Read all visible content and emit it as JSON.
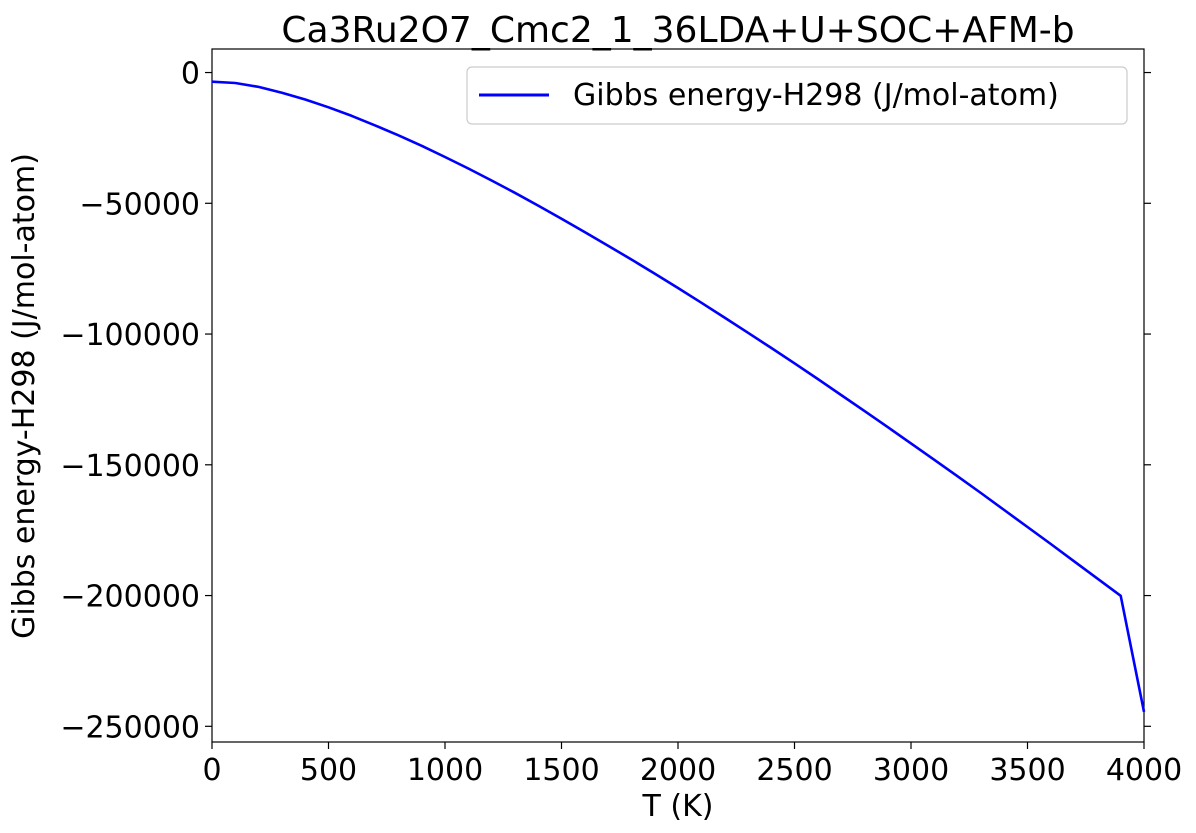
{
  "chart_data": {
    "type": "line",
    "title": "Ca3Ru2O7_Cmc2_1_36LDA+U+SOC+AFM-b",
    "xlabel": "T (K)",
    "ylabel": "Gibbs energy-H298 (J/mol-atom)",
    "xlim": [
      0,
      4000
    ],
    "ylim": [
      -256000,
      9000
    ],
    "xticks": [
      0,
      500,
      1000,
      1500,
      2000,
      2500,
      3000,
      3500,
      4000
    ],
    "xtick_labels": [
      "0",
      "500",
      "1000",
      "1500",
      "2000",
      "2500",
      "3000",
      "3500",
      "4000"
    ],
    "yticks": [
      0,
      -50000,
      -100000,
      -150000,
      -200000,
      -250000
    ],
    "ytick_labels": [
      "0",
      "−50000",
      "−100000",
      "−150000",
      "−200000",
      "−250000"
    ],
    "grid": false,
    "legend_position": "top-right",
    "series": [
      {
        "name": "Gibbs energy-H298 (J/mol-atom)",
        "color": "#0000ff",
        "x": [
          0,
          100,
          200,
          300,
          400,
          500,
          600,
          700,
          800,
          900,
          1000,
          1100,
          1200,
          1300,
          1400,
          1500,
          1600,
          1700,
          1800,
          1900,
          2000,
          2100,
          2200,
          2300,
          2400,
          2500,
          2600,
          2700,
          2800,
          2900,
          3000,
          3100,
          3200,
          3300,
          3400,
          3500,
          3600,
          3700,
          3800,
          3900,
          4000
        ],
        "y": [
          -3500,
          -4000,
          -5500,
          -7700,
          -10300,
          -13300,
          -16600,
          -20200,
          -24000,
          -28000,
          -32300,
          -36700,
          -41300,
          -46000,
          -50900,
          -55900,
          -61000,
          -66200,
          -71500,
          -76900,
          -82400,
          -88000,
          -93700,
          -99500,
          -105300,
          -111200,
          -117200,
          -123300,
          -129400,
          -135600,
          -141800,
          -148100,
          -154400,
          -160800,
          -167300,
          -173800,
          -180300,
          -186900,
          -193500,
          -200100,
          -244500
        ]
      }
    ]
  }
}
